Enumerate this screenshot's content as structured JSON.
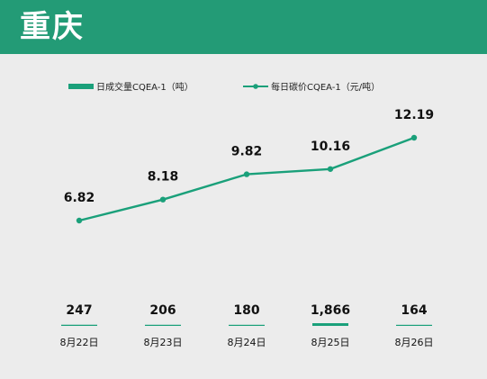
{
  "header": {
    "title": "重庆"
  },
  "colors": {
    "accent": "#239b76",
    "line": "#1aa07a"
  },
  "chart_data": {
    "type": "bar+line",
    "categories": [
      "8月22日",
      "8月23日",
      "8月24日",
      "8月25日",
      "8月26日"
    ],
    "series": [
      {
        "name": "日成交量CQEA-1（吨）",
        "type": "bar",
        "values": [
          247,
          206,
          180,
          1866,
          164
        ],
        "labels": [
          "247",
          "206",
          "180",
          "1,866",
          "164"
        ]
      },
      {
        "name": "每日碳价CQEA-1（元/吨）",
        "type": "line",
        "values": [
          6.82,
          8.18,
          9.82,
          10.16,
          12.19
        ],
        "labels": [
          "6.82",
          "8.18",
          "9.82",
          "10.16",
          "12.19"
        ]
      }
    ],
    "legend_position": "top-left",
    "grid": false
  }
}
